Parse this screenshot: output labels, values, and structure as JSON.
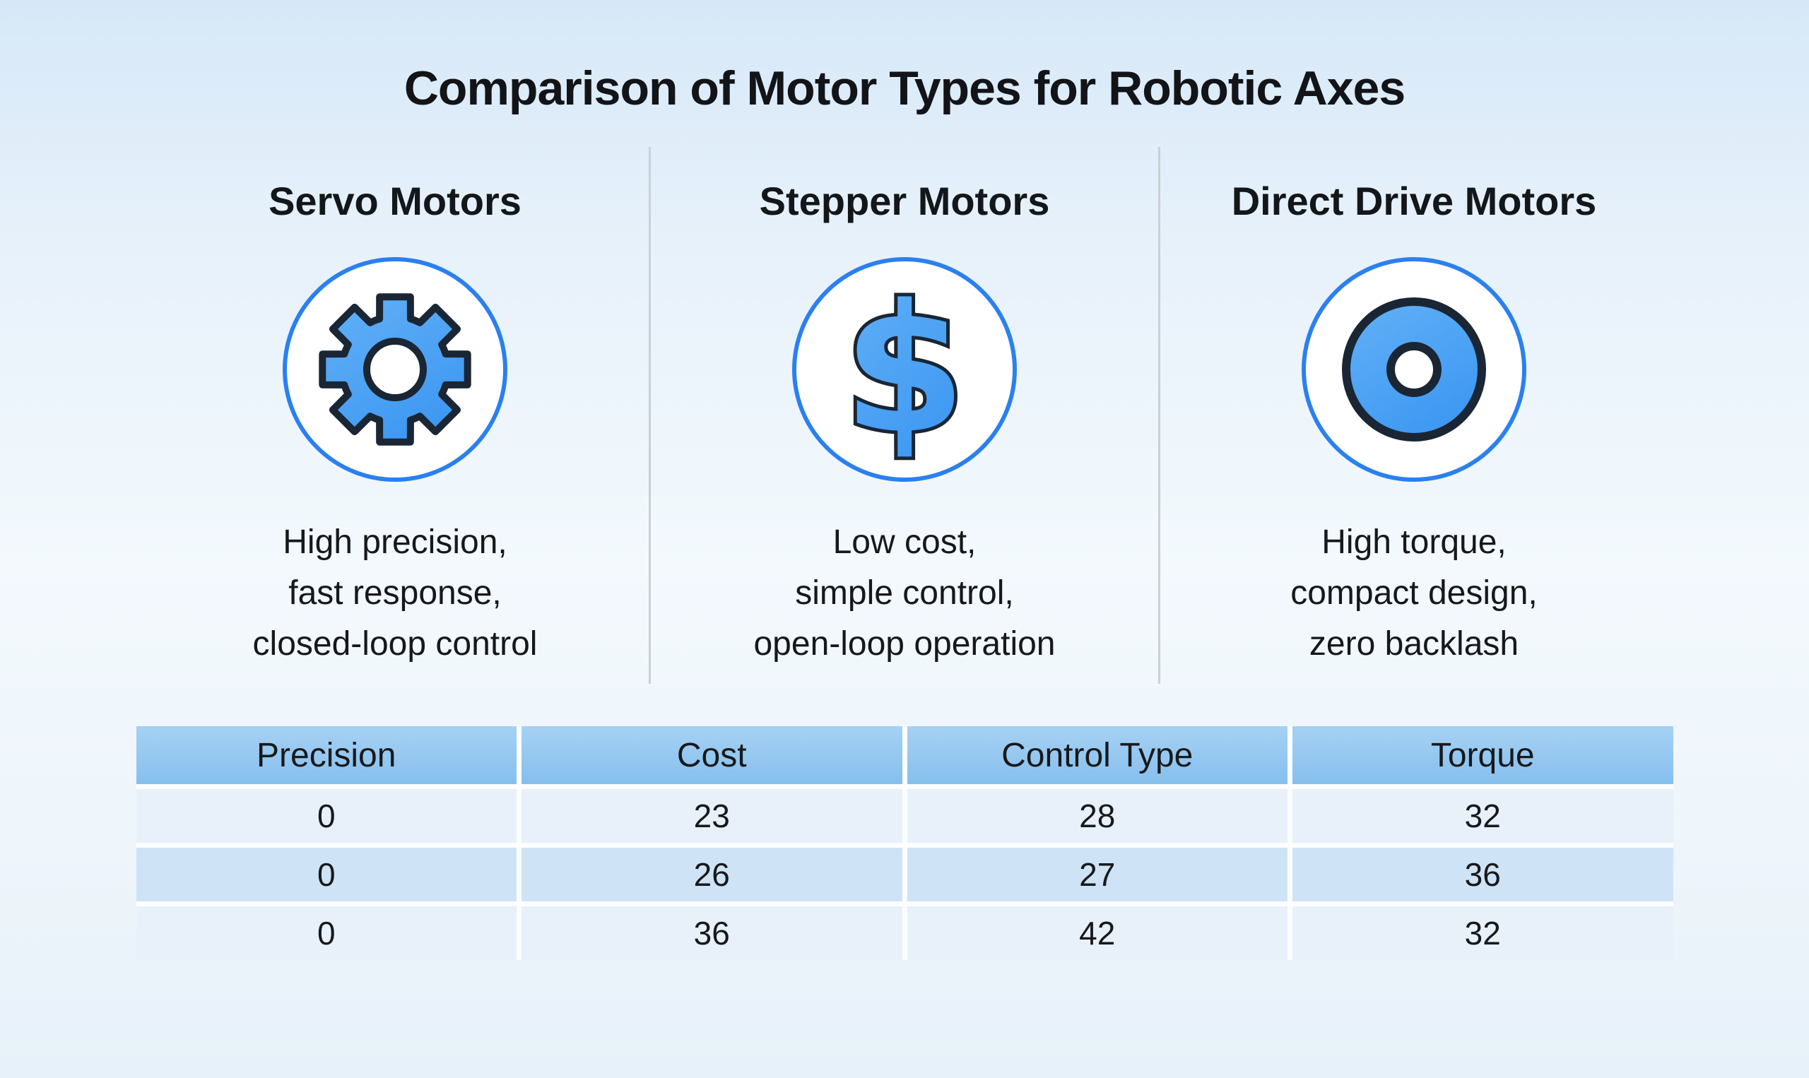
{
  "title": "Comparison of Motor Types for Robotic Axes",
  "columns": [
    {
      "name": "Servo Motors",
      "icon": "gear-icon",
      "description": "High precision,\nfast response,\nclosed-loop control"
    },
    {
      "name": "Stepper Motors",
      "icon": "dollar-icon",
      "description": "Low cost,\nsimple control,\nopen-loop operation"
    },
    {
      "name": "Direct Drive Motors",
      "icon": "torque-disc-icon",
      "description": "High torque,\ncompact design,\nzero backlash"
    }
  ],
  "table": {
    "headers": [
      "Precision",
      "Cost",
      "Control Type",
      "Torque"
    ],
    "rows": [
      [
        "0",
        "23",
        "28",
        "32"
      ],
      [
        "0",
        "26",
        "27",
        "36"
      ],
      [
        "0",
        "36",
        "42",
        "32"
      ]
    ]
  },
  "colors": {
    "accent_blue_ring": "#2b80f0",
    "icon_fill_blue_light": "#63b1f7",
    "icon_fill_blue_dark": "#3e98f2",
    "icon_outline_navy": "#1a2634",
    "table_header_blue": "#8cc2ee",
    "table_row_light": "#e8f1fa",
    "table_row_medium": "#cfe3f6",
    "background_top": "#d6e8f8",
    "text_dark": "#141619"
  }
}
